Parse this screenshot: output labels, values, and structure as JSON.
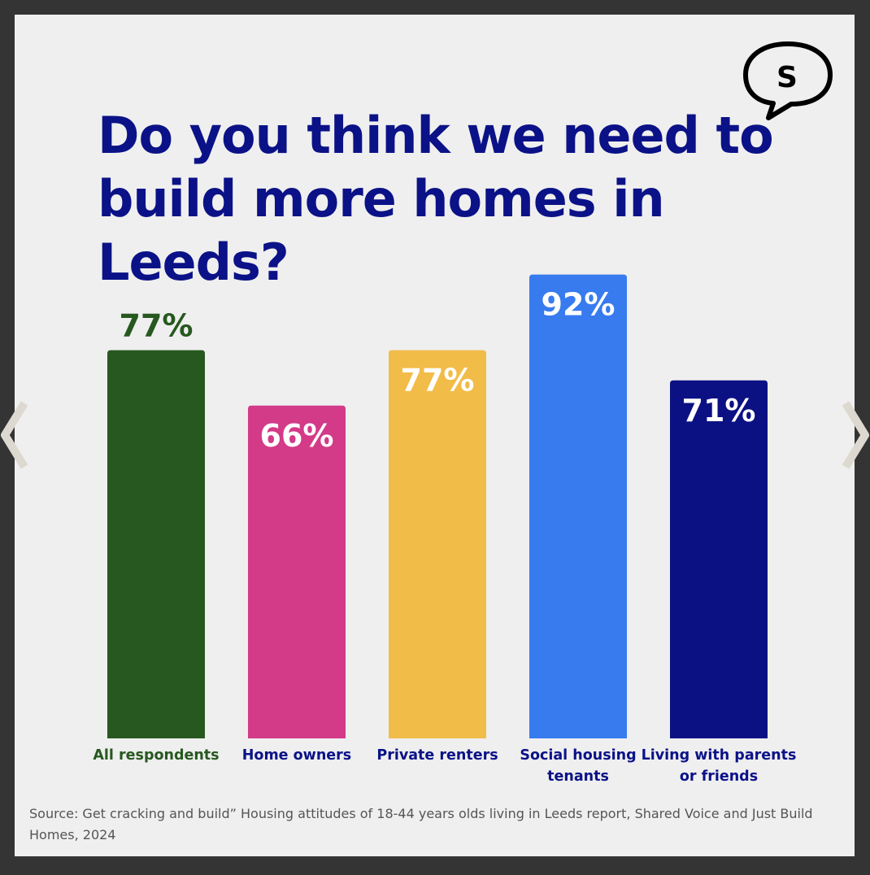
{
  "title": "Do you think we need to build more homes in Leeds?",
  "logo_letter": "S",
  "source": "Source: Get cracking and build” Housing attitudes of 18-44 years olds living in Leeds report, Shared Voice and Just Build Homes, 2024",
  "nav": {
    "prev_icon": "chevron-left-icon",
    "next_icon": "chevron-right-icon"
  },
  "colors": {
    "title": "#0b1287",
    "card": "#efefef",
    "frame": "#343434",
    "nav_chevron": "#ddd9d0"
  },
  "chart_data": {
    "type": "bar",
    "categories": [
      "All respondents",
      "Home owners",
      "Private renters",
      "Social housing tenants",
      "Living with parents or friends"
    ],
    "category_lines": [
      [
        "All respondents"
      ],
      [
        "Home owners"
      ],
      [
        "Private renters"
      ],
      [
        "Social housing",
        "tenants"
      ],
      [
        "Living with parents",
        "or friends"
      ]
    ],
    "values": [
      77,
      66,
      77,
      92,
      71
    ],
    "value_labels": [
      "77%",
      "66%",
      "77%",
      "92%",
      "71%"
    ],
    "bar_colors": [
      "#27581f",
      "#d33a88",
      "#f2bc48",
      "#377bef",
      "#0b1183"
    ],
    "value_label_colors": [
      "#27581f",
      "#ffffff",
      "#ffffff",
      "#ffffff",
      "#ffffff"
    ],
    "category_label_colors": [
      "#27581f",
      "#0b1287",
      "#0b1287",
      "#0b1287",
      "#0b1287"
    ],
    "value_label_position": [
      "above",
      "inside",
      "inside",
      "inside",
      "inside"
    ],
    "ylim": [
      0,
      100
    ],
    "grid": false,
    "legend": "none",
    "title": "Do you think we need to build more homes in Leeds?",
    "xlabel": "",
    "ylabel": ""
  }
}
